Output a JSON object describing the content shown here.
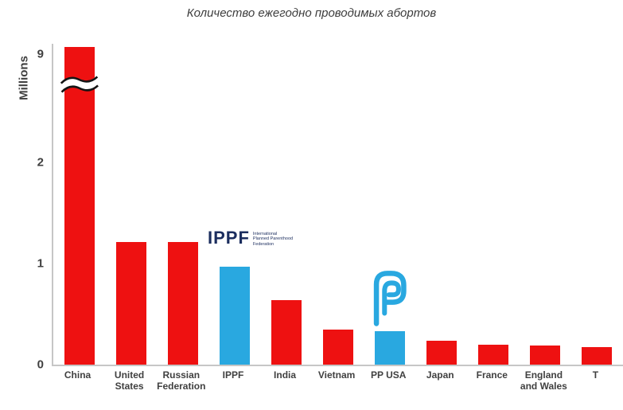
{
  "title": "Количество ежегодно проводимых абортов",
  "y_axis": {
    "label": "Millions",
    "ticks": [
      0,
      1,
      2,
      9
    ]
  },
  "chart_data": {
    "type": "bar",
    "title": "Количество ежегодно проводимых абортов",
    "xlabel": "",
    "ylabel": "Millions",
    "units": "millions",
    "categories": [
      "China",
      "United States",
      "Russian Federation",
      "IPPF",
      "India",
      "Vietnam",
      "PP USA",
      "Japan",
      "France",
      "England and Wales",
      "T"
    ],
    "values": [
      9.5,
      1.21,
      1.21,
      0.97,
      0.64,
      0.35,
      0.33,
      0.24,
      0.2,
      0.19,
      0.17
    ],
    "bar_colors": [
      "#ee1111",
      "#ee1111",
      "#ee1111",
      "#29a8e0",
      "#ee1111",
      "#ee1111",
      "#29a8e0",
      "#ee1111",
      "#ee1111",
      "#ee1111",
      "#ee1111"
    ],
    "y_ticks": [
      0,
      1,
      2,
      9
    ],
    "ylim": [
      0,
      9.6
    ],
    "axis_break": {
      "between": [
        2,
        9
      ],
      "on_category": "China"
    },
    "grid": false,
    "legend": false
  },
  "logos": {
    "ippf": {
      "text": "IPPF",
      "sub_lines": [
        "International",
        "Planned Parenthood",
        "Federation"
      ],
      "color": "#1b2d5e"
    },
    "planned_parenthood": {
      "color": "#29a8e0"
    }
  },
  "colors": {
    "bar_red": "#ee1111",
    "bar_blue": "#29a8e0",
    "axis": "#c6c6c6",
    "text": "#404040"
  }
}
